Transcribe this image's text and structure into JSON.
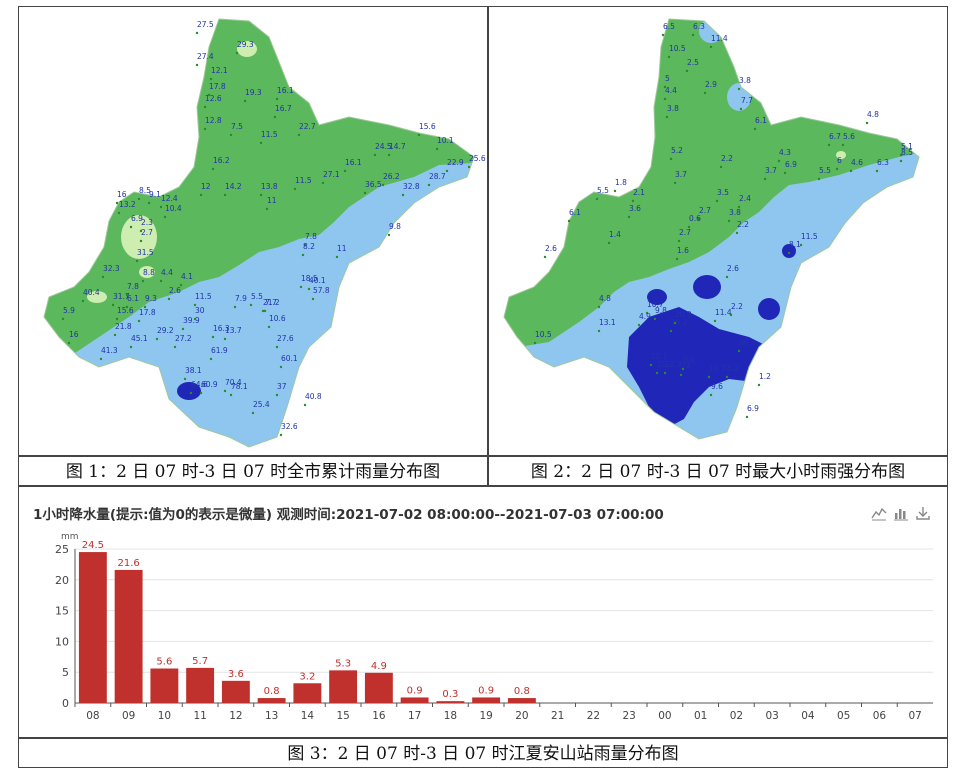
{
  "figure1": {
    "caption": "图 1：2 日 07 时-3 日 07 时全市累计雨量分布图",
    "values": [
      "27.5",
      "29.3",
      "27.4",
      "12.1",
      "17.8",
      "12.6",
      "19.3",
      "16.1",
      "16.7",
      "12.8",
      "7.5",
      "11.5",
      "22.7",
      "15.6",
      "10.1",
      "16.2",
      "24.5",
      "14.7",
      "22.9",
      "25.6",
      "27.1",
      "16.1",
      "11.5",
      "36.5",
      "26.2",
      "32.8",
      "28.7",
      "12",
      "14.2",
      "13.8",
      "16",
      "13.2",
      "8.5",
      "9.1",
      "12.4",
      "10.4",
      "6.9",
      "2.3",
      "2.7",
      "11",
      "7.8",
      "8.2",
      "9.8",
      "11",
      "31.5",
      "32.3",
      "40.4",
      "31.7",
      "8.8",
      "4.4",
      "4.1",
      "2.6",
      "7.8",
      "6.1",
      "15.6",
      "11.5",
      "7.9",
      "5.5",
      "7.7",
      "17.8",
      "5.9",
      "16",
      "21.8",
      "41.3",
      "45.1",
      "29.2",
      "39.9",
      "16.3",
      "13.7",
      "27.2",
      "30",
      "61.9",
      "60.1",
      "38.1",
      "64.6",
      "60.9",
      "70.4",
      "78.1",
      "37",
      "25.4",
      "40.8",
      "32.6",
      "9.3",
      "27.6",
      "10.6",
      "21.2",
      "57.8",
      "18.5",
      "40.1"
    ]
  },
  "figure2": {
    "caption": "图 2：2 日 07 时-3 日 07 时最大小时雨强分布图",
    "values": [
      "6.5",
      "6.3",
      "11.4",
      "10.5",
      "2.5",
      "5",
      "4.4",
      "2.9",
      "3.8",
      "7.7",
      "3.8",
      "6.1",
      "4.8",
      "5.1",
      "6.7",
      "5.6",
      "6",
      "4.6",
      "6.3",
      "8.5",
      "5.2",
      "3.7",
      "2.2",
      "4.3",
      "3.7",
      "6.9",
      "5.5",
      "1.8",
      "5.5",
      "2.1",
      "3.6",
      "2.6",
      "1.4",
      "2.7",
      "8.1",
      "11.5",
      "6.1",
      "2.4",
      "3.5",
      "3.8",
      "2.2",
      "1.6",
      "0.6",
      "2.7",
      "10.7",
      "9.8",
      "20.9",
      "19.2",
      "13.1",
      "10.5",
      "4.9",
      "19.7",
      "36",
      "15.7",
      "15.2",
      "22.3",
      "24",
      "0.4",
      "9.6",
      "8.2",
      "6.9",
      "2.6",
      "1.2",
      "11.4",
      "2.2",
      "4.8"
    ]
  },
  "figure3": {
    "caption": "图 3：2 日 07 时-3 日 07 时江夏安山站雨量分布图",
    "title": "1小时降水量(提示:值为0的表示是微量)   观测时间:2021-07-02 08:00:00--2021-07-03 07:00:00"
  },
  "chart_data": {
    "type": "bar",
    "title": "1小时降水量(提示:值为0的表示是微量)   观测时间:2021-07-02 08:00:00--2021-07-03 07:00:00",
    "ylabel": "mm",
    "xlabel": "",
    "ylim": [
      0,
      25
    ],
    "yticks": [
      0,
      5,
      10,
      15,
      20,
      25
    ],
    "categories": [
      "08",
      "09",
      "10",
      "11",
      "12",
      "13",
      "14",
      "15",
      "16",
      "17",
      "18",
      "19",
      "20",
      "21",
      "22",
      "23",
      "00",
      "01",
      "02",
      "03",
      "04",
      "05",
      "06",
      "07"
    ],
    "values": [
      24.5,
      21.6,
      5.6,
      5.7,
      3.6,
      0.8,
      3.2,
      5.3,
      4.9,
      0.9,
      0.3,
      0.9,
      0.8,
      null,
      null,
      null,
      null,
      null,
      null,
      null,
      null,
      null,
      null,
      null
    ],
    "bar_color": "#c0302c",
    "label_color": "#c0302c",
    "grid": true
  },
  "toolbar": {
    "icons": [
      "line-chart-icon",
      "bar-chart-icon",
      "download-icon"
    ]
  },
  "colors": {
    "green": "#5cb85c",
    "light_blue": "#8fc6f0",
    "dark_blue": "#2027b8",
    "pale_green": "#cdeeb0"
  }
}
